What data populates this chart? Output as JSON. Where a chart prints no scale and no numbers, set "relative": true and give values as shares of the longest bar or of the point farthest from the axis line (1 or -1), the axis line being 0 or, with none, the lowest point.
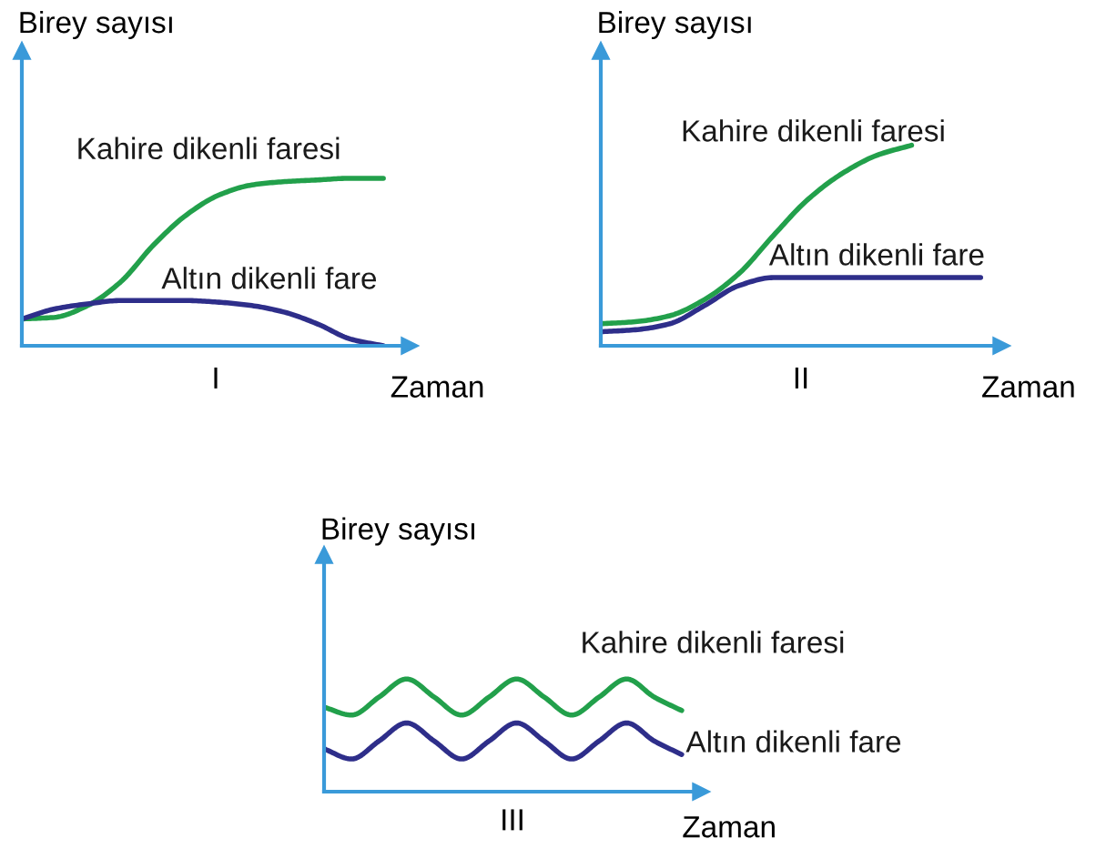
{
  "chart_data": [
    {
      "type": "line",
      "relative": true,
      "ylabel": "Birey sayısı",
      "xlabel": "Zaman",
      "annotations": [
        "I"
      ],
      "grid": false,
      "legend": false,
      "marker": "none",
      "categories": [
        null,
        null,
        null,
        null,
        null,
        null,
        null,
        null,
        null,
        null,
        null,
        null
      ],
      "series": [
        {
          "name": "Kahire dikenli faresi",
          "color": "#22a04b",
          "values": [
            0.16,
            0.17,
            0.24,
            0.38,
            0.6,
            0.78,
            0.9,
            0.96,
            0.98,
            0.99,
            1,
            1
          ]
        },
        {
          "name": "Altın dikenli fare",
          "color": "#2e2e8a",
          "values": [
            0.16,
            0.22,
            0.25,
            0.27,
            0.27,
            0.27,
            0.26,
            0.24,
            0.2,
            0.13,
            0.04,
            0
          ]
        }
      ]
    },
    {
      "type": "line",
      "relative": true,
      "ylabel": "Birey sayısı",
      "xlabel": "Zaman",
      "annotations": [
        "II"
      ],
      "grid": false,
      "legend": false,
      "marker": "none",
      "categories": [
        null,
        null,
        null,
        null,
        null,
        null,
        null,
        null,
        null,
        null,
        null,
        null
      ],
      "series": [
        {
          "name": "Kahire dikenli faresi",
          "color": "#22a04b",
          "values": [
            0.11,
            0.12,
            0.15,
            0.23,
            0.36,
            0.55,
            0.73,
            0.86,
            0.95,
            1,
            null,
            null
          ]
        },
        {
          "name": "Altın dikenli fare",
          "color": "#2e2e8a",
          "values": [
            0.07,
            0.08,
            0.11,
            0.2,
            0.3,
            0.34,
            0.34,
            0.34,
            0.34,
            0.34,
            0.34,
            0.34
          ]
        }
      ]
    },
    {
      "type": "line",
      "relative": true,
      "ylabel": "Birey sayısı",
      "xlabel": "Zaman",
      "annotations": [
        "III"
      ],
      "grid": false,
      "legend": false,
      "marker": "none",
      "categories": [
        null,
        null,
        null,
        null,
        null,
        null,
        null,
        null,
        null,
        null,
        null,
        null,
        null,
        null
      ],
      "series": [
        {
          "name": "Kahire dikenli faresi",
          "color": "#22a04b",
          "values": [
            0.75,
            0.68,
            0.84,
            1,
            0.84,
            0.68,
            0.84,
            1,
            0.84,
            0.68,
            0.84,
            1,
            0.84,
            0.72
          ]
        },
        {
          "name": "Altın dikenli fare",
          "color": "#2e2e8a",
          "values": [
            0.38,
            0.29,
            0.45,
            0.61,
            0.45,
            0.29,
            0.45,
            0.61,
            0.45,
            0.29,
            0.45,
            0.61,
            0.45,
            0.33
          ]
        }
      ]
    }
  ]
}
